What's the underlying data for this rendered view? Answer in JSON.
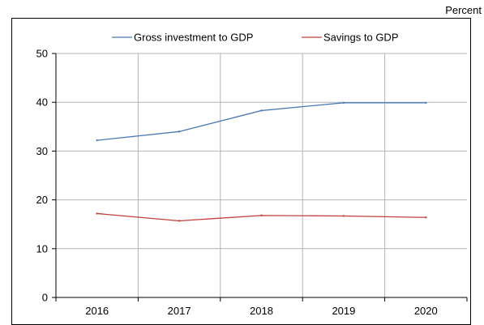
{
  "chart_data": {
    "type": "line",
    "title": "",
    "unit_label": "Percent",
    "xlabel": "",
    "ylabel": "",
    "categories": [
      "2016",
      "2017",
      "2018",
      "2019",
      "2020"
    ],
    "ylim": [
      0,
      50
    ],
    "yticks": [
      0,
      10,
      20,
      30,
      40,
      50
    ],
    "grid": true,
    "legend_position": "top",
    "series": [
      {
        "name": "Gross investment to GDP",
        "color": "#4a7ab4",
        "values": [
          32.2,
          34.0,
          38.3,
          39.9,
          39.9
        ]
      },
      {
        "name": "Savings to GDP",
        "color": "#c0403c",
        "values": [
          17.2,
          15.7,
          16.8,
          16.7,
          16.4
        ]
      }
    ]
  }
}
